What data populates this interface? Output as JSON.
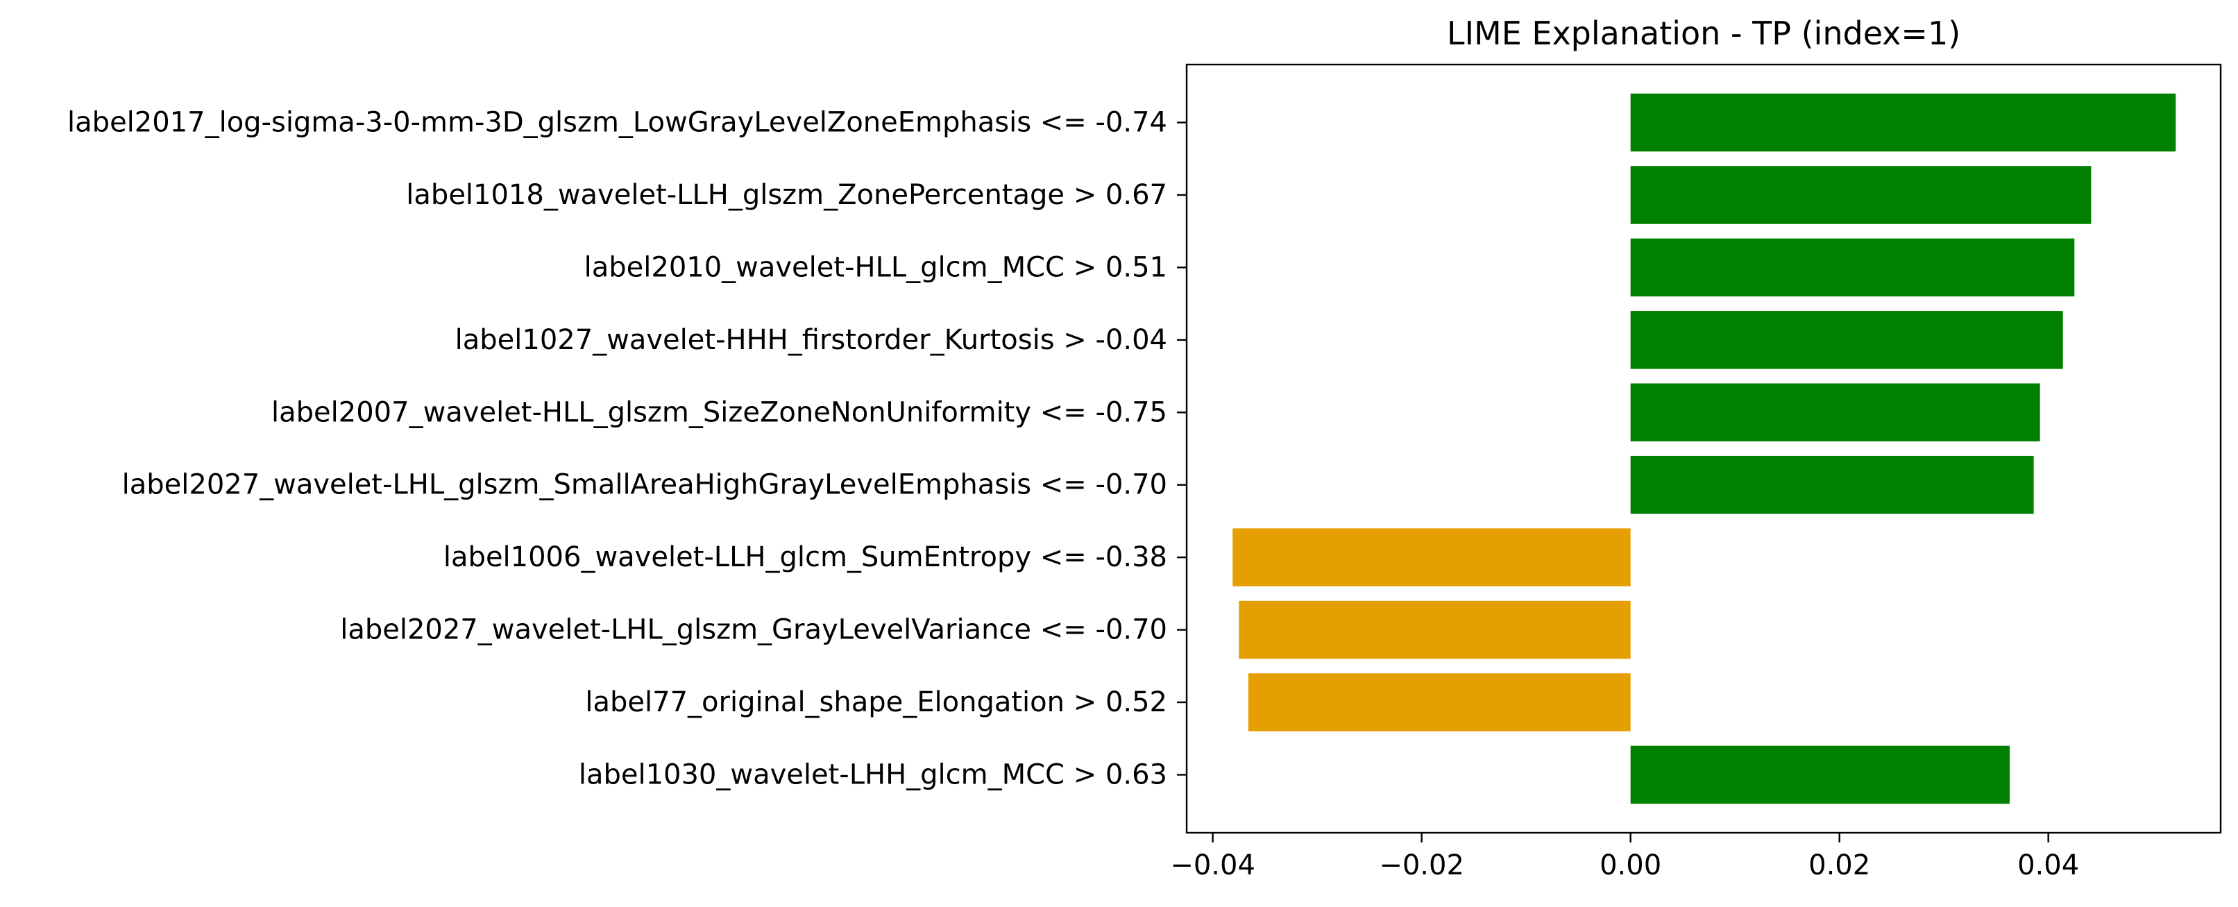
{
  "chart_data": {
    "type": "bar",
    "orientation": "horizontal",
    "title": "LIME Explanation - TP (index=1)",
    "xlabel": "",
    "ylabel": "",
    "xlim": [
      -0.0425,
      0.0565
    ],
    "xticks": [
      -0.04,
      -0.02,
      0.0,
      0.02,
      0.04
    ],
    "xtick_labels": [
      "−0.04",
      "−0.02",
      "0.00",
      "0.02",
      "0.04"
    ],
    "grid": false,
    "legend": "none",
    "colors": {
      "positive": "#008000",
      "negative": "#E69F00"
    },
    "categories": [
      "label2017_log-sigma-3-0-mm-3D_glszm_LowGrayLevelZoneEmphasis <= -0.74",
      "label1018_wavelet-LLH_glszm_ZonePercentage > 0.67",
      "label2010_wavelet-HLL_glcm_MCC > 0.51",
      "label1027_wavelet-HHH_firstorder_Kurtosis > -0.04",
      "label2007_wavelet-HLL_glszm_SizeZoneNonUniformity <= -0.75",
      "label2027_wavelet-LHL_glszm_SmallAreaHighGrayLevelEmphasis <= -0.70",
      "label1006_wavelet-LLH_glcm_SumEntropy <= -0.38",
      "label2027_wavelet-LHL_glszm_GrayLevelVariance <= -0.70",
      "label77_original_shape_Elongation > 0.52",
      "label1030_wavelet-LHH_glcm_MCC > 0.63"
    ],
    "values": [
      0.0522,
      0.0441,
      0.0425,
      0.0414,
      0.0392,
      0.0386,
      -0.0381,
      -0.0375,
      -0.0366,
      0.0363
    ]
  }
}
